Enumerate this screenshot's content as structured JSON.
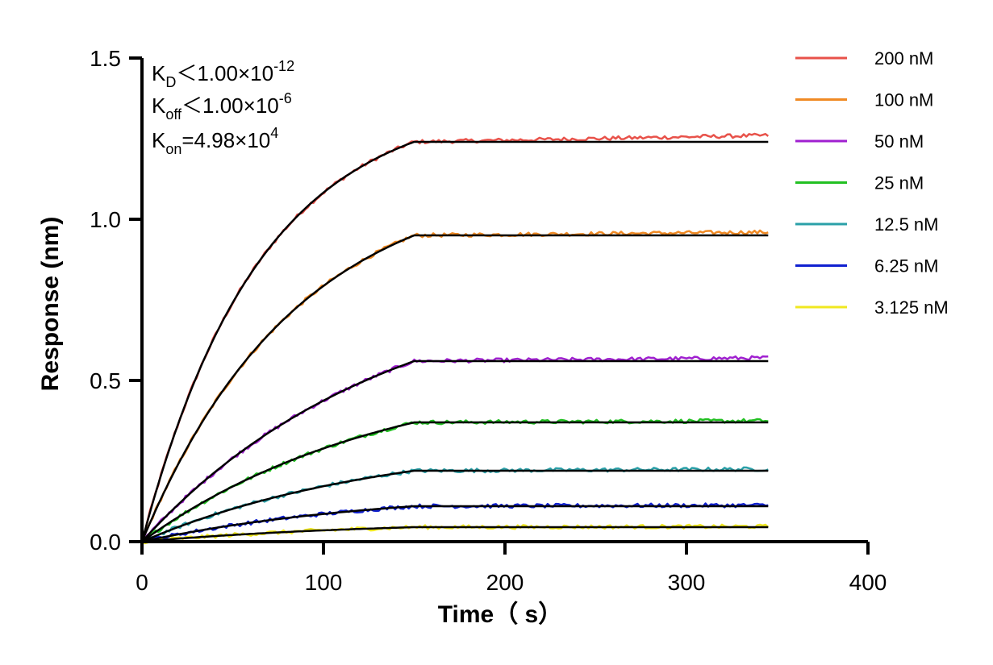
{
  "chart_data": {
    "type": "line",
    "xlabel": "Time（ s）",
    "ylabel": "Response (nm)",
    "xlim": [
      0,
      400
    ],
    "ylim": [
      0,
      1.5
    ],
    "x_ticks": [
      "0",
      "100",
      "200",
      "300",
      "400"
    ],
    "y_ticks": [
      "0.0",
      "0.5",
      "1.0",
      "1.5"
    ],
    "grid": false,
    "legend_position": "right",
    "annotations": {
      "kd": {
        "main": "K",
        "sub": "D",
        "rest": "＜1.00×10",
        "sup": "-12"
      },
      "koff": {
        "main": "K",
        "sub": "off",
        "rest": "＜1.00×10",
        "sup": "-6"
      },
      "kon": {
        "main": "K",
        "sub": "on",
        "rest": "=4.98×10",
        "sup": "4"
      }
    },
    "association_end": 150,
    "time_end": 345,
    "fit_color": "#000000",
    "series": [
      {
        "name": "200 nM",
        "color": "#e8524a",
        "plateau": 1.24,
        "k": 0.0155,
        "drift": 0.02
      },
      {
        "name": "100 nM",
        "color": "#f08a24",
        "plateau": 0.95,
        "k": 0.0118,
        "drift": 0.01
      },
      {
        "name": "50 nM",
        "color": "#a020d0",
        "plateau": 0.56,
        "k": 0.0075,
        "drift": 0.01
      },
      {
        "name": "25 nM",
        "color": "#22c022",
        "plateau": 0.37,
        "k": 0.0075,
        "drift": 0.005
      },
      {
        "name": "12.5 nM",
        "color": "#2aa0a8",
        "plateau": 0.22,
        "k": 0.0075,
        "drift": 0.005
      },
      {
        "name": "6.25 nM",
        "color": "#1020d0",
        "plateau": 0.11,
        "k": 0.0075,
        "drift": 0.003
      },
      {
        "name": "3.125 nM",
        "color": "#f0e820",
        "plateau": 0.045,
        "k": 0.0075,
        "drift": 0.002
      }
    ]
  }
}
